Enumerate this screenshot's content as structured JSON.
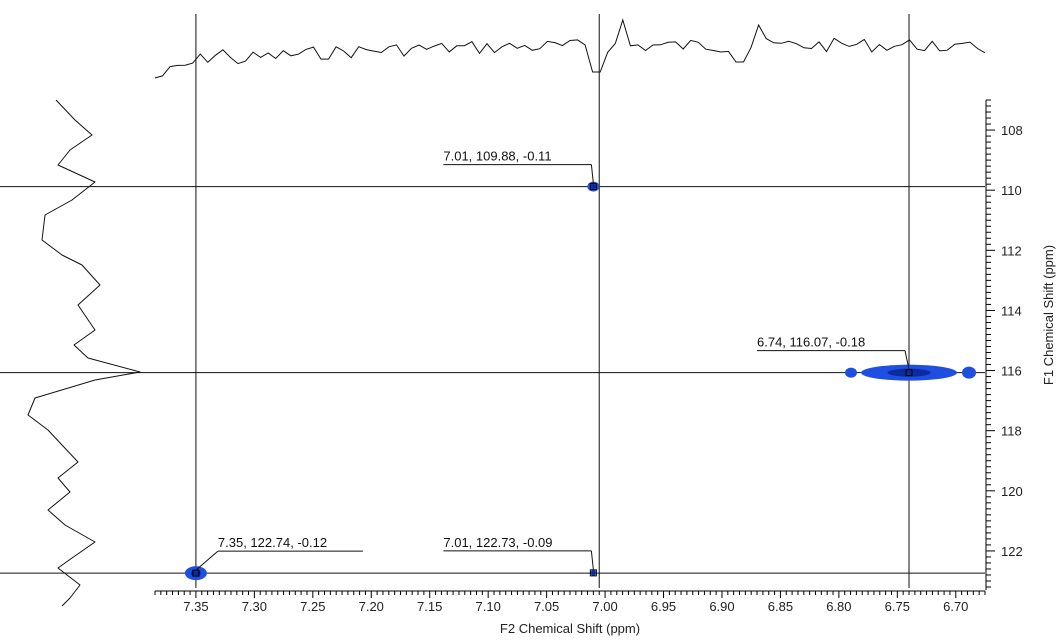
{
  "chart_data": {
    "type": "scatter",
    "subtype": "2D NMR contour (HSQC-style) with 1D projections",
    "xlabel": "F2 Chemical Shift (ppm)",
    "ylabel": "F1 Chemical Shift (ppm)",
    "x_axis": {
      "reversed": true,
      "range": [
        7.385,
        6.675
      ],
      "tick_labels": [
        "7.35",
        "7.30",
        "7.25",
        "7.20",
        "7.15",
        "7.10",
        "7.05",
        "7.00",
        "6.95",
        "6.90",
        "6.85",
        "6.80",
        "6.75",
        "6.70"
      ]
    },
    "y_axis": {
      "position": "right",
      "reversed": true,
      "range": [
        107.0,
        123.2
      ],
      "tick_labels": [
        "108",
        "110",
        "112",
        "114",
        "116",
        "118",
        "120",
        "122"
      ]
    },
    "crosshairs": {
      "x": [
        7.35,
        7.005,
        6.74
      ],
      "y": [
        109.88,
        116.07,
        122.74
      ]
    },
    "peaks": [
      {
        "x": 7.01,
        "y": 109.88,
        "intensity": -0.11,
        "label": "7.01, 109.88, -0.11"
      },
      {
        "x": 6.74,
        "y": 116.07,
        "intensity": -0.18,
        "label": "6.74, 116.07, -0.18"
      },
      {
        "x": 7.35,
        "y": 122.74,
        "intensity": -0.12,
        "label": "7.35, 122.74, -0.12"
      },
      {
        "x": 7.01,
        "y": 122.73,
        "intensity": -0.09,
        "label": "7.01, 122.73, -0.09"
      }
    ],
    "grid": false,
    "legend": "none",
    "colors": {
      "contour": "#1f4fe0",
      "contour_core": "#0a2a9e",
      "lines": "#111111"
    }
  }
}
